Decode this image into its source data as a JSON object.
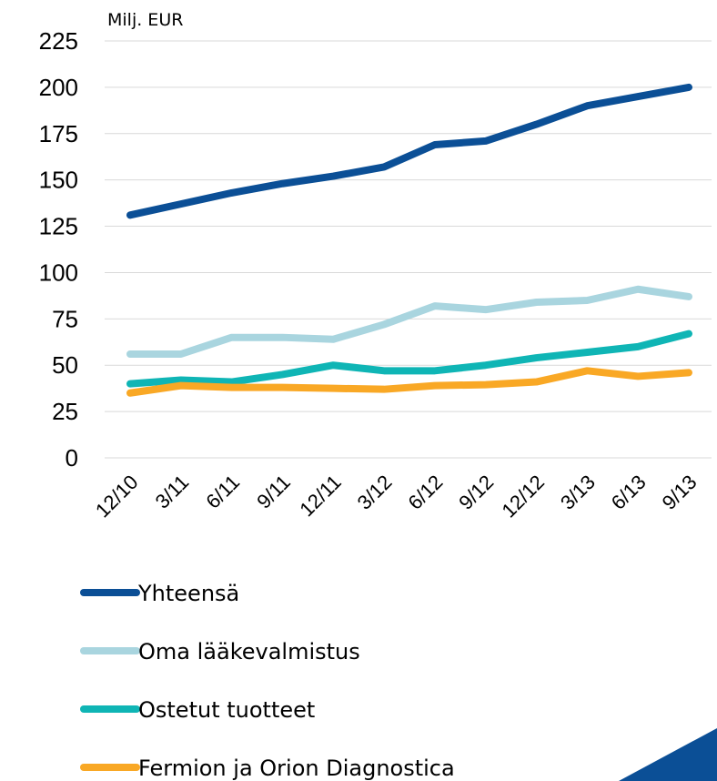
{
  "chart_data": {
    "type": "line",
    "y_axis_label": "Milj. EUR",
    "categories": [
      "12/10",
      "3/11",
      "6/11",
      "9/11",
      "12/11",
      "3/12",
      "6/12",
      "9/12",
      "12/12",
      "3/13",
      "6/13",
      "9/13"
    ],
    "series": [
      {
        "name": "Yhteensä",
        "color": "#0b4f96",
        "values": [
          131,
          137,
          143,
          148,
          152,
          157,
          169,
          171,
          180,
          190,
          195,
          200
        ]
      },
      {
        "name": "Oma lääkevalmistus",
        "color": "#a9d5df",
        "values": [
          56,
          56,
          65,
          65,
          64,
          72,
          82,
          80,
          84,
          85,
          91,
          87
        ]
      },
      {
        "name": "Ostetut tuotteet",
        "color": "#0fb5b5",
        "values": [
          40,
          42,
          41,
          45,
          50,
          47,
          47,
          50,
          54,
          57,
          60,
          67
        ]
      },
      {
        "name": "Fermion ja Orion Diagnostica",
        "color": "#f9a825",
        "values": [
          35,
          39,
          38,
          38,
          37.5,
          37,
          39,
          39.5,
          41,
          47,
          44,
          46
        ]
      }
    ],
    "ylim": [
      0,
      225
    ],
    "yticks": [
      0,
      25,
      50,
      75,
      100,
      125,
      150,
      175,
      200,
      225
    ],
    "grid": true
  }
}
